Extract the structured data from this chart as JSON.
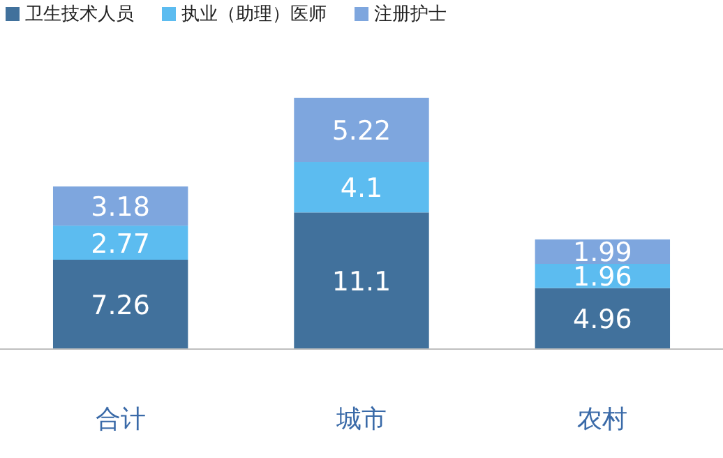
{
  "chart_data": {
    "type": "bar",
    "stacked": true,
    "data_labels": true,
    "legend": "top left",
    "categories": [
      "合计",
      "城市",
      "农村"
    ],
    "series": [
      {
        "name": "卫生技术人员",
        "color": "#41719c",
        "values": [
          7.26,
          11.1,
          4.96
        ]
      },
      {
        "name": "执业（助理）医师",
        "color": "#5cbcf0",
        "values": [
          2.77,
          4.1,
          1.96
        ]
      },
      {
        "name": "注册护士",
        "color": "#7ea6de",
        "values": [
          3.18,
          5.22,
          1.99
        ]
      }
    ]
  }
}
